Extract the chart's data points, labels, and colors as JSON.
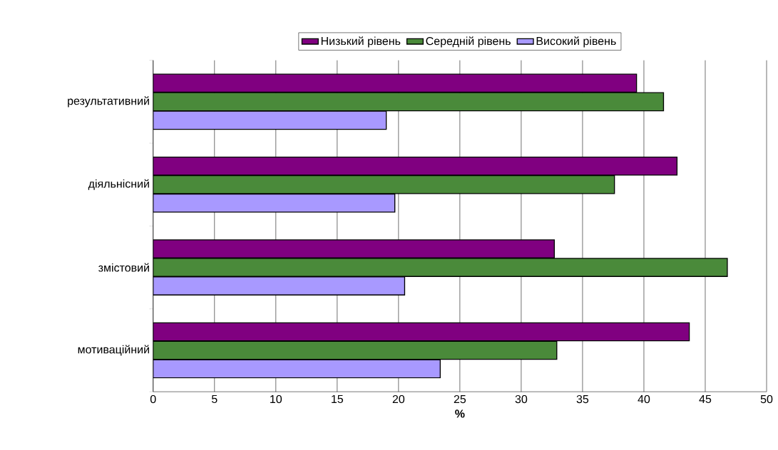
{
  "chart_data": {
    "type": "bar",
    "orientation": "horizontal",
    "xlabel": "%",
    "categories": [
      "результативний",
      "діяльнісний",
      "змістовий",
      "мотиваційний"
    ],
    "series": [
      {
        "name": "Низький рівень",
        "color": "#800080",
        "values": [
          39.4,
          42.7,
          32.7,
          43.7
        ]
      },
      {
        "name": "Середній рівень",
        "color": "#4a8a3a",
        "values": [
          41.6,
          37.6,
          46.8,
          32.9
        ]
      },
      {
        "name": "Високий рівень",
        "color": "#a899ff",
        "values": [
          19.0,
          19.7,
          20.5,
          23.4
        ]
      }
    ],
    "xlim": [
      0,
      50
    ],
    "xticks": [
      0,
      5,
      10,
      15,
      20,
      25,
      30,
      35,
      40,
      45,
      50
    ],
    "grid": "x",
    "legend": "top"
  }
}
